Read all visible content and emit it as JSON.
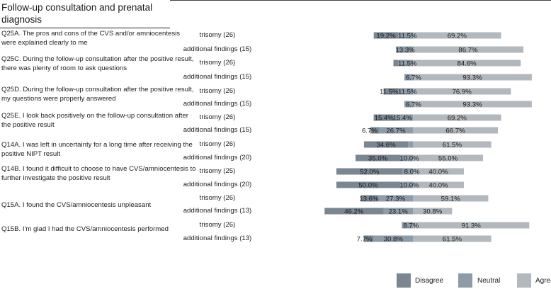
{
  "header": {
    "title": "Follow-up consultation and prenatal diagnosis"
  },
  "colors": {
    "disagree": "#7a8792",
    "neutral": "#8d9ca8",
    "agree": "#b2b8bd",
    "label": "#1a1a1a"
  },
  "legend": {
    "disagree": "Disagree",
    "neutral": "Neutral",
    "agree": "Agree"
  },
  "chart_data": {
    "type": "bar",
    "stacked": true,
    "orientation": "horizontal",
    "series": [
      {
        "name": "Disagree"
      },
      {
        "name": "Neutral"
      },
      {
        "name": "Agree"
      }
    ],
    "questions": [
      {
        "text": "Q25A. The pros and cons of the CVS and/or amniocentesis were explained clearly to me",
        "rows": [
          {
            "group": "trisomy (26)",
            "disagree": 19.2,
            "neutral": 11.5,
            "agree": 69.2,
            "labels": [
              "19.2%",
              "11.5%",
              "69.2%"
            ]
          },
          {
            "group": "additional findings (15)",
            "disagree": 0,
            "neutral": 13.3,
            "agree": 86.7,
            "labels": [
              "",
              "13.3%",
              "86.7%"
            ]
          }
        ]
      },
      {
        "text": "Q25C. During the follow-up consultation after the positive result, there was plenty of room to ask questions",
        "rows": [
          {
            "group": "trisomy (26)",
            "disagree": 3.8,
            "neutral": 11.5,
            "agree": 84.6,
            "labels": [
              "",
              "11.5%",
              "84.6%"
            ]
          },
          {
            "group": "additional findings (15)",
            "disagree": 0,
            "neutral": 6.7,
            "agree": 93.3,
            "labels": [
              "",
              "6.7%",
              "93.3%"
            ]
          }
        ]
      },
      {
        "text": "Q25D. During the follow-up consultation after the positive result, my questions were properly answered",
        "rows": [
          {
            "group": "trisomy (26)",
            "disagree": 11.5,
            "neutral": 11.5,
            "agree": 76.9,
            "labels": [
              "11.5%",
              "11.5%",
              "76.9%"
            ]
          },
          {
            "group": "additional findings (15)",
            "disagree": 0,
            "neutral": 6.7,
            "agree": 93.3,
            "labels": [
              "",
              "6.7%",
              "93.3%"
            ]
          }
        ]
      },
      {
        "text": "Q25E. I look back positively on the follow-up consultation after the positive result",
        "rows": [
          {
            "group": "trisomy (26)",
            "disagree": 15.4,
            "neutral": 15.4,
            "agree": 69.2,
            "labels": [
              "15.4%",
              "15.4%",
              "69.2%"
            ]
          },
          {
            "group": "additional findings (15)",
            "disagree": 6.7,
            "neutral": 26.7,
            "agree": 66.7,
            "labels": [
              "6.7%",
              "26.7%",
              "66.7%"
            ]
          }
        ]
      },
      {
        "text": "Q14A. I was left in uncertainty for a long time after receiving the positive NIPT result",
        "rows": [
          {
            "group": "trisomy (26)",
            "disagree": 34.6,
            "neutral": 3.8,
            "agree": 61.5,
            "labels": [
              "34.6%",
              "",
              "61.5%"
            ]
          },
          {
            "group": "additional findings (20)",
            "disagree": 35.0,
            "neutral": 10.0,
            "agree": 55.0,
            "labels": [
              "35.0%",
              "10.0%",
              "55.0%"
            ]
          }
        ]
      },
      {
        "text": "Q14B. I found it difficult to choose to have CVS/amniocentesis to further investigate the positive result",
        "rows": [
          {
            "group": "trisomy (25)",
            "disagree": 52.0,
            "neutral": 8.0,
            "agree": 40.0,
            "labels": [
              "52.0%",
              "8.0%",
              "40.0%"
            ]
          },
          {
            "group": "additional findings (20)",
            "disagree": 50.0,
            "neutral": 10.0,
            "agree": 40.0,
            "labels": [
              "50.0%",
              "10.0%",
              "40.0%"
            ]
          }
        ]
      },
      {
        "text": "Q15A. I found the CVS/amniocentesis unpleasant",
        "rows": [
          {
            "group": "trisomy (26)",
            "disagree": 13.6,
            "neutral": 27.3,
            "agree": 59.1,
            "labels": [
              "13.6%",
              "27.3%",
              "59.1%"
            ]
          },
          {
            "group": "additional findings (13)",
            "disagree": 46.2,
            "neutral": 23.1,
            "agree": 30.8,
            "labels": [
              "46.2%",
              "23.1%",
              "30.8%"
            ]
          }
        ]
      },
      {
        "text": "Q15B. I'm glad I had the CVS/amniocentesis performed",
        "rows": [
          {
            "group": "trisomy (26)",
            "disagree": 0,
            "neutral": 8.7,
            "agree": 91.3,
            "labels": [
              "",
              "8.7%",
              "91.3%"
            ]
          },
          {
            "group": "additional findings (13)",
            "disagree": 7.7,
            "neutral": 30.8,
            "agree": 61.5,
            "labels": [
              "7.7%",
              "30.8%",
              "61.5%"
            ]
          }
        ]
      }
    ]
  }
}
